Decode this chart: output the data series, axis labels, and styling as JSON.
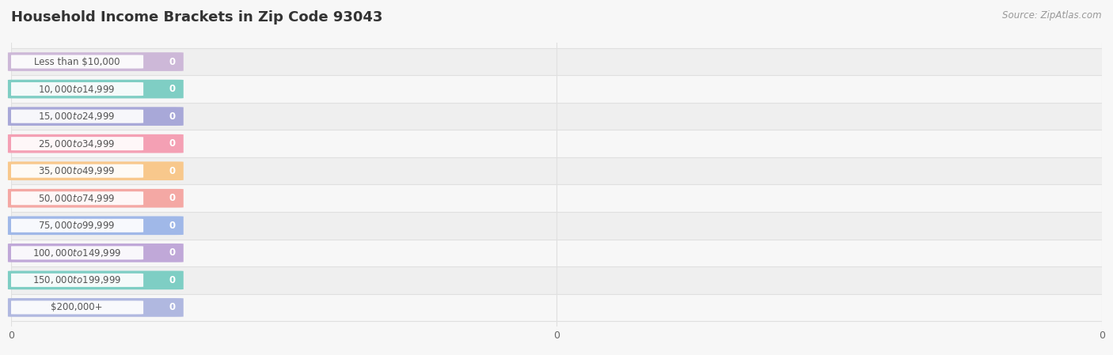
{
  "title": "Household Income Brackets in Zip Code 93043",
  "source": "Source: ZipAtlas.com",
  "categories": [
    "Less than $10,000",
    "$10,000 to $14,999",
    "$15,000 to $24,999",
    "$25,000 to $34,999",
    "$35,000 to $49,999",
    "$50,000 to $74,999",
    "$75,000 to $99,999",
    "$100,000 to $149,999",
    "$150,000 to $199,999",
    "$200,000+"
  ],
  "values": [
    0,
    0,
    0,
    0,
    0,
    0,
    0,
    0,
    0,
    0
  ],
  "bar_colors": [
    "#cdb8d8",
    "#7fcec4",
    "#a8a8d8",
    "#f4a0b4",
    "#f8c88c",
    "#f4a8a4",
    "#a0b8e8",
    "#c0a8d8",
    "#7ecec4",
    "#b0b8e0"
  ],
  "background_color": "#f7f7f7",
  "title_fontsize": 13,
  "bar_label_color": "#ffffff",
  "value_label_color": "#ffffff",
  "category_label_color": "#555555",
  "grid_color": "#e0e0e0",
  "row_bg_odd": "#efefef",
  "row_bg_even": "#f7f7f7"
}
